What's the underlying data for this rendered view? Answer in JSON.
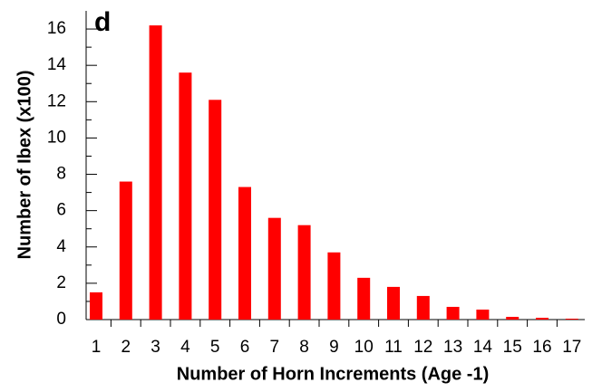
{
  "chart_data": {
    "type": "bar",
    "panel_label": "d",
    "xlabel": "Number of Horn Increments (Age -1)",
    "ylabel": "Number of Ibex (x100)",
    "categories": [
      "1",
      "2",
      "3",
      "4",
      "5",
      "6",
      "7",
      "8",
      "9",
      "10",
      "11",
      "12",
      "13",
      "14",
      "15",
      "16",
      "17"
    ],
    "values": [
      1.5,
      7.6,
      16.2,
      13.6,
      12.1,
      7.3,
      5.6,
      5.2,
      3.7,
      2.3,
      1.8,
      1.3,
      0.7,
      0.55,
      0.15,
      0.1,
      0.05
    ],
    "color": "#ff0000",
    "ylim": [
      0,
      17
    ],
    "yticks": [
      0,
      2,
      4,
      6,
      8,
      10,
      12,
      14,
      16
    ],
    "yminorticks": [
      1,
      3,
      5,
      7,
      9,
      11,
      13,
      15
    ],
    "grid": false
  }
}
